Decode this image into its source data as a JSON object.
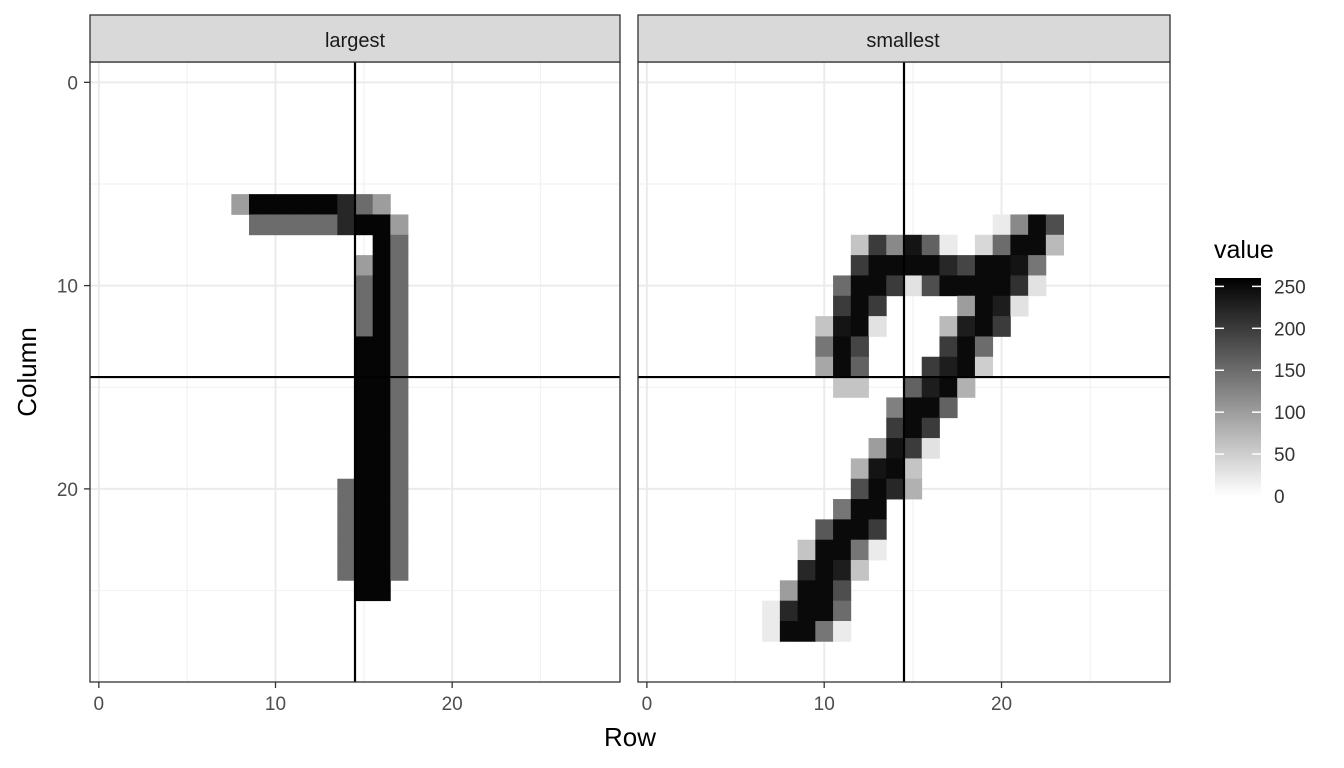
{
  "chart_data": {
    "type": "heatmap",
    "xlabel": "Row",
    "ylabel": "Column",
    "xlim": [
      -0.5,
      29.5
    ],
    "ylim": [
      -1,
      29.5
    ],
    "y_reversed": true,
    "x_ticks": [
      0,
      10,
      20
    ],
    "y_ticks": [
      0,
      10,
      20
    ],
    "grid": true,
    "reference_lines": {
      "x": 14.5,
      "y": 14.5
    },
    "color_scale": {
      "name": "value",
      "low": "#ffffff",
      "high": "#000000",
      "range": [
        0,
        260
      ],
      "breaks": [
        0,
        50,
        100,
        150,
        200,
        250
      ],
      "legend_position": "right"
    },
    "panels": [
      {
        "label": "largest",
        "cells": [
          [
            8,
            6,
            100
          ],
          [
            9,
            6,
            255
          ],
          [
            10,
            6,
            255
          ],
          [
            11,
            6,
            255
          ],
          [
            12,
            6,
            255
          ],
          [
            13,
            6,
            255
          ],
          [
            14,
            6,
            220
          ],
          [
            15,
            6,
            150
          ],
          [
            16,
            6,
            100
          ],
          [
            9,
            7,
            150
          ],
          [
            10,
            7,
            150
          ],
          [
            11,
            7,
            150
          ],
          [
            12,
            7,
            150
          ],
          [
            13,
            7,
            150
          ],
          [
            14,
            7,
            220
          ],
          [
            15,
            7,
            255
          ],
          [
            16,
            7,
            255
          ],
          [
            17,
            7,
            100
          ],
          [
            16,
            8,
            255
          ],
          [
            17,
            8,
            150
          ],
          [
            15,
            9,
            100
          ],
          [
            16,
            9,
            255
          ],
          [
            17,
            9,
            150
          ],
          [
            15,
            10,
            150
          ],
          [
            16,
            10,
            255
          ],
          [
            17,
            10,
            150
          ],
          [
            15,
            11,
            150
          ],
          [
            16,
            11,
            255
          ],
          [
            17,
            11,
            150
          ],
          [
            15,
            12,
            150
          ],
          [
            16,
            12,
            255
          ],
          [
            17,
            12,
            150
          ],
          [
            15,
            13,
            255
          ],
          [
            16,
            13,
            255
          ],
          [
            17,
            13,
            150
          ],
          [
            15,
            14,
            255
          ],
          [
            16,
            14,
            255
          ],
          [
            17,
            14,
            150
          ],
          [
            15,
            15,
            255
          ],
          [
            16,
            15,
            255
          ],
          [
            17,
            15,
            150
          ],
          [
            15,
            16,
            255
          ],
          [
            16,
            16,
            255
          ],
          [
            17,
            16,
            150
          ],
          [
            15,
            17,
            255
          ],
          [
            16,
            17,
            255
          ],
          [
            17,
            17,
            150
          ],
          [
            15,
            18,
            255
          ],
          [
            16,
            18,
            255
          ],
          [
            17,
            18,
            150
          ],
          [
            15,
            19,
            255
          ],
          [
            16,
            19,
            255
          ],
          [
            17,
            19,
            150
          ],
          [
            14,
            20,
            150
          ],
          [
            15,
            20,
            255
          ],
          [
            16,
            20,
            255
          ],
          [
            17,
            20,
            150
          ],
          [
            14,
            21,
            150
          ],
          [
            15,
            21,
            255
          ],
          [
            16,
            21,
            255
          ],
          [
            17,
            21,
            150
          ],
          [
            14,
            22,
            150
          ],
          [
            15,
            22,
            255
          ],
          [
            16,
            22,
            255
          ],
          [
            17,
            22,
            150
          ],
          [
            14,
            23,
            150
          ],
          [
            15,
            23,
            255
          ],
          [
            16,
            23,
            255
          ],
          [
            17,
            23,
            150
          ],
          [
            14,
            24,
            150
          ],
          [
            15,
            24,
            255
          ],
          [
            16,
            24,
            255
          ],
          [
            17,
            24,
            150
          ],
          [
            15,
            25,
            255
          ],
          [
            16,
            25,
            255
          ]
        ]
      },
      {
        "label": "smallest",
        "cells": [
          [
            20,
            7,
            20
          ],
          [
            21,
            7,
            120
          ],
          [
            22,
            7,
            250
          ],
          [
            23,
            7,
            180
          ],
          [
            12,
            8,
            60
          ],
          [
            13,
            8,
            200
          ],
          [
            14,
            8,
            120
          ],
          [
            15,
            8,
            240
          ],
          [
            16,
            8,
            160
          ],
          [
            17,
            8,
            20
          ],
          [
            19,
            8,
            40
          ],
          [
            20,
            8,
            150
          ],
          [
            21,
            8,
            250
          ],
          [
            22,
            8,
            250
          ],
          [
            23,
            8,
            70
          ],
          [
            12,
            9,
            200
          ],
          [
            13,
            9,
            250
          ],
          [
            14,
            9,
            250
          ],
          [
            15,
            9,
            250
          ],
          [
            16,
            9,
            250
          ],
          [
            17,
            9,
            220
          ],
          [
            18,
            9,
            190
          ],
          [
            19,
            9,
            250
          ],
          [
            20,
            9,
            250
          ],
          [
            21,
            9,
            240
          ],
          [
            22,
            9,
            140
          ],
          [
            11,
            10,
            150
          ],
          [
            12,
            10,
            250
          ],
          [
            13,
            10,
            250
          ],
          [
            14,
            10,
            200
          ],
          [
            15,
            10,
            30
          ],
          [
            16,
            10,
            180
          ],
          [
            17,
            10,
            250
          ],
          [
            18,
            10,
            250
          ],
          [
            19,
            10,
            250
          ],
          [
            20,
            10,
            250
          ],
          [
            21,
            10,
            210
          ],
          [
            22,
            10,
            30
          ],
          [
            11,
            11,
            200
          ],
          [
            12,
            11,
            250
          ],
          [
            13,
            11,
            200
          ],
          [
            18,
            11,
            100
          ],
          [
            19,
            11,
            250
          ],
          [
            20,
            11,
            230
          ],
          [
            21,
            11,
            30
          ],
          [
            10,
            12,
            60
          ],
          [
            11,
            12,
            240
          ],
          [
            12,
            12,
            250
          ],
          [
            13,
            12,
            30
          ],
          [
            17,
            12,
            70
          ],
          [
            18,
            12,
            230
          ],
          [
            19,
            12,
            250
          ],
          [
            20,
            12,
            200
          ],
          [
            10,
            13,
            140
          ],
          [
            11,
            13,
            250
          ],
          [
            12,
            13,
            190
          ],
          [
            17,
            13,
            200
          ],
          [
            18,
            13,
            250
          ],
          [
            19,
            13,
            150
          ],
          [
            10,
            14,
            90
          ],
          [
            11,
            14,
            250
          ],
          [
            12,
            14,
            160
          ],
          [
            16,
            14,
            200
          ],
          [
            17,
            14,
            230
          ],
          [
            18,
            14,
            250
          ],
          [
            19,
            14,
            50
          ],
          [
            11,
            15,
            60
          ],
          [
            12,
            15,
            60
          ],
          [
            15,
            15,
            160
          ],
          [
            16,
            15,
            230
          ],
          [
            17,
            15,
            250
          ],
          [
            18,
            15,
            80
          ],
          [
            14,
            16,
            130
          ],
          [
            15,
            16,
            250
          ],
          [
            16,
            16,
            250
          ],
          [
            17,
            16,
            160
          ],
          [
            14,
            17,
            200
          ],
          [
            15,
            17,
            250
          ],
          [
            16,
            17,
            200
          ],
          [
            13,
            18,
            100
          ],
          [
            14,
            18,
            240
          ],
          [
            15,
            18,
            200
          ],
          [
            16,
            18,
            30
          ],
          [
            12,
            19,
            80
          ],
          [
            13,
            19,
            240
          ],
          [
            14,
            19,
            250
          ],
          [
            15,
            19,
            60
          ],
          [
            12,
            20,
            180
          ],
          [
            13,
            20,
            250
          ],
          [
            14,
            20,
            220
          ],
          [
            15,
            20,
            80
          ],
          [
            11,
            21,
            140
          ],
          [
            12,
            21,
            250
          ],
          [
            13,
            21,
            250
          ],
          [
            10,
            22,
            170
          ],
          [
            11,
            22,
            250
          ],
          [
            12,
            22,
            250
          ],
          [
            13,
            22,
            200
          ],
          [
            9,
            23,
            60
          ],
          [
            10,
            23,
            250
          ],
          [
            11,
            23,
            250
          ],
          [
            12,
            23,
            140
          ],
          [
            13,
            23,
            20
          ],
          [
            9,
            24,
            220
          ],
          [
            10,
            24,
            250
          ],
          [
            11,
            24,
            230
          ],
          [
            12,
            24,
            60
          ],
          [
            8,
            25,
            100
          ],
          [
            9,
            25,
            250
          ],
          [
            10,
            25,
            250
          ],
          [
            11,
            25,
            180
          ],
          [
            7,
            26,
            20
          ],
          [
            8,
            26,
            220
          ],
          [
            9,
            26,
            250
          ],
          [
            10,
            26,
            250
          ],
          [
            11,
            26,
            150
          ],
          [
            7,
            27,
            20
          ],
          [
            8,
            27,
            250
          ],
          [
            9,
            27,
            250
          ],
          [
            10,
            27,
            140
          ],
          [
            11,
            27,
            20
          ]
        ]
      }
    ]
  }
}
